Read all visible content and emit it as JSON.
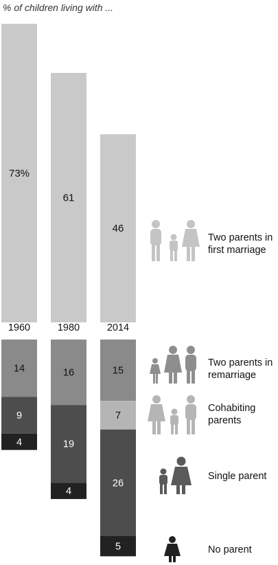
{
  "chart_data": {
    "type": "bar",
    "title": "% of children living with ...",
    "categories": [
      "1960",
      "1980",
      "2014"
    ],
    "top_series": {
      "name": "Two parents in first marriage",
      "values": [
        73,
        61,
        46
      ],
      "labels": [
        "73%",
        "61",
        "46"
      ],
      "color": "#c9c9c9"
    },
    "bottom_series": [
      {
        "name": "Two parents in remarriage",
        "values": [
          14,
          16,
          15
        ],
        "labels": [
          "14",
          "16",
          "15"
        ],
        "color": "#8a8a8a",
        "text_color": "#111111"
      },
      {
        "name": "Cohabiting parents",
        "values": [
          0,
          0,
          7
        ],
        "labels": [
          "",
          "",
          "7"
        ],
        "color": "#b5b5b5",
        "text_color": "#111111"
      },
      {
        "name": "Single parent",
        "values": [
          9,
          19,
          26
        ],
        "labels": [
          "9",
          "19",
          "26"
        ],
        "color": "#4d4d4d",
        "text_color": "#ffffff"
      },
      {
        "name": "No parent",
        "values": [
          4,
          4,
          5
        ],
        "labels": [
          "4",
          "4",
          "5"
        ],
        "color": "#222222",
        "text_color": "#ffffff"
      }
    ]
  },
  "legend": [
    {
      "label": "Two parents in\nfirst marriage",
      "icon": "family-two-parents-one-child-icon",
      "color": "#c4c4c4"
    },
    {
      "label": "Two parents in\nremarriage",
      "icon": "family-two-parents-two-children-icon",
      "color": "#8e8e8e"
    },
    {
      "label": "Cohabiting\nparents",
      "icon": "family-two-parents-one-child-icon",
      "color": "#b5b5b5"
    },
    {
      "label": "Single parent",
      "icon": "single-parent-with-child-icon",
      "color": "#5a5a5a"
    },
    {
      "label": "No parent",
      "icon": "child-alone-icon",
      "color": "#222222"
    }
  ]
}
